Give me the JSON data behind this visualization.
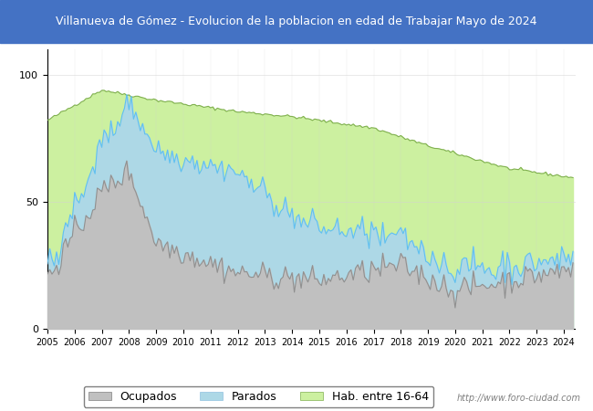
{
  "title": "Villanueva de Gómez - Evolucion de la poblacion en edad de Trabajar Mayo de 2024",
  "title_bg_color": "#4472c4",
  "title_text_color": "white",
  "ylim": [
    0,
    110
  ],
  "yticks": [
    0,
    50,
    100
  ],
  "watermark": "http://www.foro-ciudad.com",
  "legend_labels": [
    "Ocupados",
    "Parados",
    "Hab. entre 16-64"
  ],
  "color_ocupados": "#c0c0c0",
  "color_parados": "#add8e6",
  "color_hab": "#ccf0a0",
  "line_color_ocupados": "#909090",
  "line_color_parados": "#60c0f0",
  "line_color_hab": "#80b050"
}
